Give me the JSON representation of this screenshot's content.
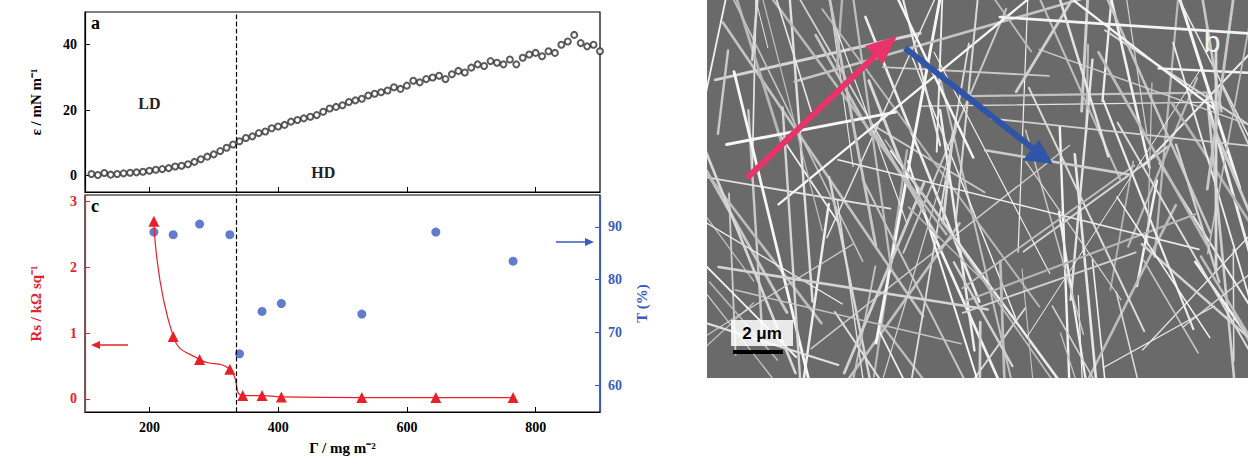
{
  "chart_data": [
    {
      "type": "scatter",
      "title": "a",
      "ylabel": "ε / mN m⁻¹",
      "xlim": [
        100,
        900
      ],
      "xticks": [
        200,
        400,
        600,
        800
      ],
      "ylim": [
        -5,
        50
      ],
      "yticks": [
        0,
        20,
        40
      ],
      "tick_labels": "y",
      "grid": false,
      "vline_x": 335,
      "annotations": [
        {
          "text": "LD",
          "x": 200,
          "y": 22
        },
        {
          "text": "HD",
          "x": 470,
          "y": 1
        }
      ],
      "series": [
        {
          "color": "#333333",
          "marker": "open circle",
          "x": [
            110,
            120,
            130,
            140,
            150,
            160,
            170,
            180,
            190,
            200,
            210,
            220,
            230,
            240,
            250,
            260,
            270,
            280,
            290,
            300,
            310,
            320,
            330,
            340,
            350,
            360,
            370,
            380,
            390,
            400,
            410,
            420,
            430,
            440,
            450,
            460,
            470,
            480,
            490,
            500,
            510,
            520,
            530,
            540,
            550,
            560,
            570,
            580,
            590,
            600,
            610,
            620,
            630,
            640,
            650,
            660,
            670,
            680,
            690,
            700,
            710,
            720,
            730,
            740,
            750,
            760,
            770,
            780,
            790,
            800,
            810,
            820,
            830,
            840,
            850,
            860,
            870,
            880,
            890,
            900
          ],
          "values": [
            0.5,
            0.2,
            0.8,
            0.3,
            0.5,
            0.7,
            0.9,
            1.0,
            1.2,
            1.5,
            1.8,
            2.0,
            2.3,
            2.8,
            3.0,
            3.5,
            4.2,
            5.0,
            5.8,
            6.5,
            7.5,
            8.5,
            9.5,
            10.5,
            11.5,
            12.0,
            13.0,
            13.5,
            14.5,
            15.0,
            15.5,
            16.5,
            17.0,
            17.5,
            18.0,
            18.5,
            19.5,
            20.5,
            21.0,
            21.5,
            22.5,
            23.0,
            23.5,
            24.5,
            25.0,
            25.5,
            26.0,
            27.0,
            26.5,
            27.5,
            29.0,
            28.5,
            29.5,
            30.0,
            30.5,
            29.5,
            31.0,
            32.0,
            31.5,
            33.0,
            34.0,
            33.5,
            35.0,
            34.5,
            34.0,
            35.5,
            34.0,
            36.0,
            37.0,
            37.5,
            36.5,
            38.0,
            37.5,
            40.0,
            41.0,
            43.0,
            40.5,
            39.5,
            40.0,
            38.0
          ]
        }
      ]
    },
    {
      "type": "line",
      "title": "c",
      "xlabel": "Γ / mg m⁻²",
      "ylabel": "Rs / kΩ sq⁻¹",
      "y2label": "T (%)",
      "xlim": [
        100,
        900
      ],
      "xticks": [
        200,
        400,
        600,
        800
      ],
      "ylim": [
        -0.2,
        3.1
      ],
      "yticks": [
        0,
        1,
        2,
        3
      ],
      "y2lim": [
        55,
        96
      ],
      "y2ticks": [
        60,
        70,
        80,
        90
      ],
      "grid": false,
      "vline_x": 335,
      "series": [
        {
          "type": "line",
          "color": "#e8202a",
          "marker": "triangle",
          "line_style": "solid",
          "x": [
            207,
            237,
            278,
            325,
            345,
            375,
            405,
            530,
            645,
            765
          ],
          "values": [
            2.7,
            0.95,
            0.6,
            0.45,
            0.05,
            0.05,
            0.03,
            0.02,
            0.02,
            0.02
          ]
        },
        {
          "type": "scatter",
          "axis": "y2",
          "color": "#3a5bbf",
          "marker": "circle",
          "x": [
            207,
            237,
            278,
            325,
            340,
            375,
            405,
            530,
            645,
            765
          ],
          "values": [
            89,
            88.5,
            90.5,
            88.5,
            66,
            74,
            75.5,
            73.5,
            89,
            83.5
          ]
        }
      ]
    }
  ],
  "panel_b": {
    "title": "b",
    "scale_bar": "2 μm"
  }
}
